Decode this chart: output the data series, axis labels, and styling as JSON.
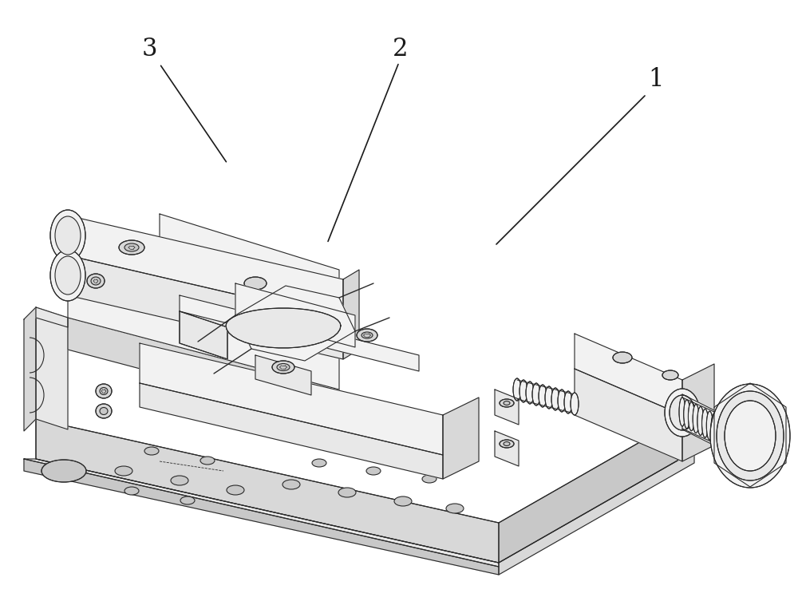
{
  "bg_color": "#ffffff",
  "line_color": "#2a2a2a",
  "lw": 0.8,
  "fill_light": "#f2f2f2",
  "fill_mid": "#e8e8e8",
  "fill_dark": "#d8d8d8",
  "fill_darker": "#c8c8c8",
  "label_color": "#1a1a1a",
  "label_fs": 22
}
